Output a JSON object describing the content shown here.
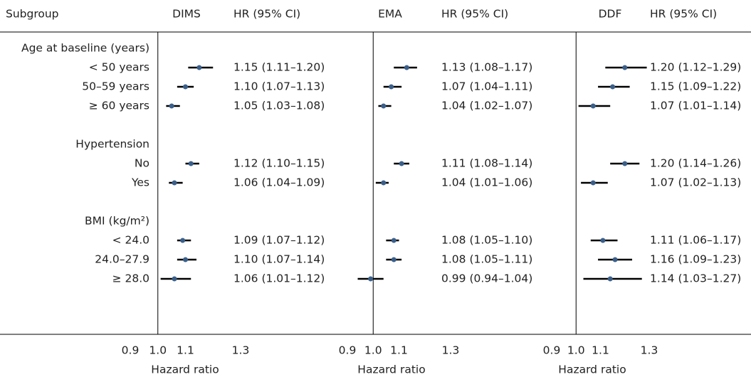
{
  "chart_data": {
    "type": "forest",
    "subgroup_header": "Subgroup",
    "categories": [
      "Age at baseline (years)",
      "< 50 years",
      "50–59 years",
      "≥ 60 years",
      "Hypertension",
      "No",
      "Yes",
      "BMI (kg/m²)",
      "< 24.0",
      "24.0–27.9",
      "≥ 28.0"
    ],
    "reference_line": 1,
    "point_color": "#3a5f8a",
    "ci_color": "#000000",
    "panels": [
      {
        "name": "DIMS",
        "column_header": "HR (95% CI)",
        "xlabel": "Hazard ratio",
        "xlim": [
          0.9,
          1.3
        ],
        "xticks": [
          0.9,
          {
            "value": 1,
            "label": "1.0"
          },
          1.1,
          1.3
        ],
        "values": [
          null,
          1.15,
          1.1,
          1.05,
          null,
          1.12,
          1.06,
          null,
          1.09,
          1.1,
          1.06
        ],
        "lower": [
          null,
          1.11,
          1.07,
          1.03,
          null,
          1.1,
          1.04,
          null,
          1.07,
          1.07,
          1.01
        ],
        "upper": [
          null,
          1.2,
          1.13,
          1.08,
          null,
          1.15,
          1.09,
          null,
          1.12,
          1.14,
          1.12
        ],
        "value_labels": [
          null,
          "1.15 (1.11–1.20)",
          "1.10 (1.07–1.13)",
          "1.05 (1.03–1.08)",
          null,
          "1.12 (1.10–1.15)",
          "1.06 (1.04–1.09)",
          null,
          "1.09 (1.07–1.12)",
          "1.10 (1.07–1.14)",
          "1.06 (1.01–1.12)"
        ]
      },
      {
        "name": "EMA",
        "column_header": "HR (95% CI)",
        "xlabel": "Hazard ratio",
        "xlim": [
          0.9,
          1.3
        ],
        "xticks": [
          0.9,
          {
            "value": 1,
            "label": "1.0"
          },
          1.1,
          1.3
        ],
        "values": [
          null,
          1.13,
          1.07,
          1.04,
          null,
          1.11,
          1.04,
          null,
          1.08,
          1.08,
          0.99
        ],
        "lower": [
          null,
          1.08,
          1.04,
          1.02,
          null,
          1.08,
          1.01,
          null,
          1.05,
          1.05,
          0.94
        ],
        "upper": [
          null,
          1.17,
          1.11,
          1.07,
          null,
          1.14,
          1.06,
          null,
          1.1,
          1.11,
          1.04
        ],
        "value_labels": [
          null,
          "1.13 (1.08–1.17)",
          "1.07 (1.04–1.11)",
          "1.04 (1.02–1.07)",
          null,
          "1.11 (1.08–1.14)",
          "1.04 (1.01–1.06)",
          null,
          "1.08 (1.05–1.10)",
          "1.08 (1.05–1.11)",
          "0.99 (0.94–1.04)"
        ]
      },
      {
        "name": "DDF",
        "column_header": "HR (95% CI)",
        "xlabel": "Hazard ratio",
        "xlim": [
          0.9,
          1.3
        ],
        "xticks": [
          0.9,
          {
            "value": 1,
            "label": "1.0"
          },
          1.1,
          1.3
        ],
        "values": [
          null,
          1.2,
          1.15,
          1.07,
          null,
          1.2,
          1.07,
          null,
          1.11,
          1.16,
          1.14
        ],
        "lower": [
          null,
          1.12,
          1.09,
          1.01,
          null,
          1.14,
          1.02,
          null,
          1.06,
          1.09,
          1.03
        ],
        "upper": [
          null,
          1.29,
          1.22,
          1.14,
          null,
          1.26,
          1.13,
          null,
          1.17,
          1.23,
          1.27
        ],
        "value_labels": [
          null,
          "1.20 (1.12–1.29)",
          "1.15 (1.09–1.22)",
          "1.07 (1.01–1.14)",
          null,
          "1.20 (1.14–1.26)",
          "1.07 (1.02–1.13)",
          null,
          "1.11 (1.06–1.17)",
          "1.16 (1.09–1.23)",
          "1.14 (1.03–1.27)"
        ]
      }
    ]
  }
}
